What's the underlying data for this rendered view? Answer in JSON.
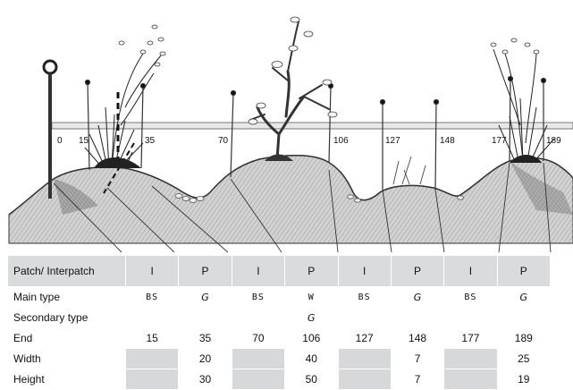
{
  "diagram": {
    "transect_marks": [
      "0",
      "15",
      "35",
      "70",
      "106",
      "127",
      "148",
      "177",
      "189"
    ]
  },
  "table": {
    "headers": [
      "Patch/ Interpatch",
      "I",
      "P",
      "I",
      "P",
      "I",
      "P",
      "I",
      "P"
    ],
    "rows": [
      {
        "label": "Main type",
        "cells": [
          "BS",
          "G",
          "BS",
          "W",
          "BS",
          "G",
          "BS",
          "G"
        ]
      },
      {
        "label": "Secondary type",
        "cells": [
          "",
          "",
          "",
          "G",
          "",
          "",
          "",
          ""
        ]
      },
      {
        "label": "End",
        "cells": [
          "15",
          "35",
          "70",
          "106",
          "127",
          "148",
          "177",
          "189"
        ]
      },
      {
        "label": "Width",
        "cells": [
          "",
          "20",
          "",
          "40",
          "",
          "7",
          "",
          "25"
        ]
      },
      {
        "label": "Height",
        "cells": [
          "",
          "30",
          "",
          "50",
          "",
          "7",
          "",
          "19"
        ]
      }
    ]
  }
}
